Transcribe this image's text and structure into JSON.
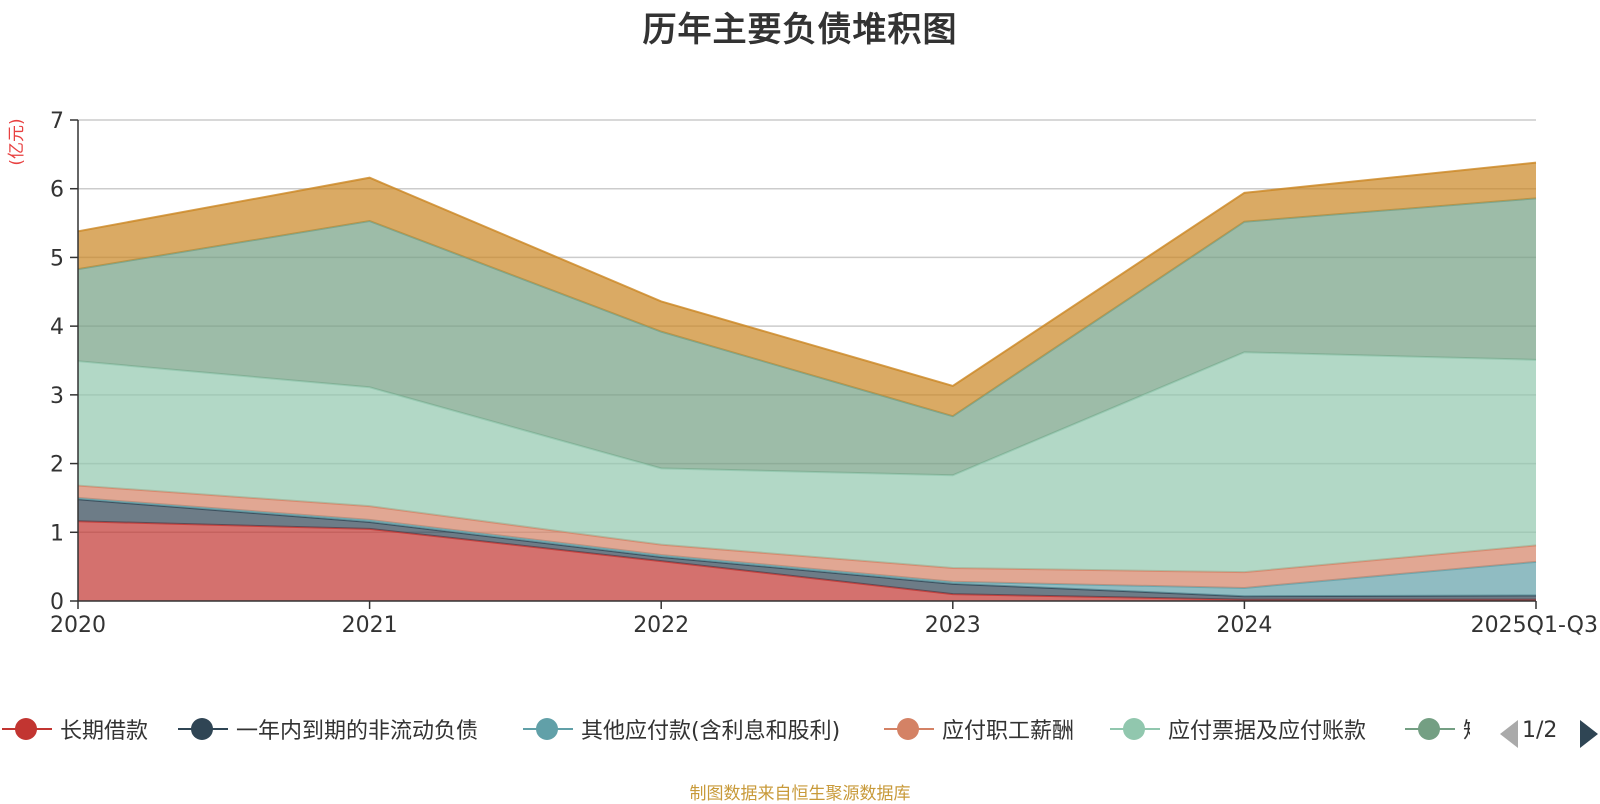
{
  "title": "历年主要负债堆积图",
  "footer": "制图数据来自恒生聚源数据库",
  "legend_page": "1/2",
  "chart_data": {
    "type": "area",
    "stacked": true,
    "title": "历年主要负债堆积图",
    "ylabel": "(亿元)",
    "xlabel": "",
    "ylim": [
      0,
      7
    ],
    "yticks": [
      0,
      1,
      2,
      3,
      4,
      5,
      6,
      7
    ],
    "grid": true,
    "categories": [
      "2020",
      "2021",
      "2022",
      "2023",
      "2024",
      "2025Q1-Q3"
    ],
    "series": [
      {
        "name": "长期借款",
        "color": "#c23531",
        "values": [
          1.16,
          1.05,
          0.58,
          0.1,
          0.02,
          0.02
        ]
      },
      {
        "name": "一年内到期的非流动负债",
        "color": "#2f4554",
        "values": [
          0.32,
          0.1,
          0.06,
          0.15,
          0.05,
          0.06
        ]
      },
      {
        "name": "其他应付款(含利息和股利)",
        "color": "#61a0a8",
        "values": [
          0.02,
          0.03,
          0.03,
          0.03,
          0.12,
          0.49
        ]
      },
      {
        "name": "应付职工薪酬",
        "color": "#d48265",
        "values": [
          0.18,
          0.2,
          0.15,
          0.2,
          0.23,
          0.24
        ]
      },
      {
        "name": "应付票据及应付账款",
        "color": "#91c7ae",
        "values": [
          1.81,
          1.73,
          1.11,
          1.35,
          3.2,
          2.7
        ]
      },
      {
        "name": "短期借款",
        "color": "#749f83",
        "values": [
          1.34,
          2.42,
          1.99,
          0.86,
          1.9,
          2.35
        ]
      },
      {
        "name": "",
        "color": "#ca8622",
        "values": [
          0.55,
          0.63,
          0.44,
          0.44,
          0.42,
          0.52
        ]
      }
    ]
  }
}
